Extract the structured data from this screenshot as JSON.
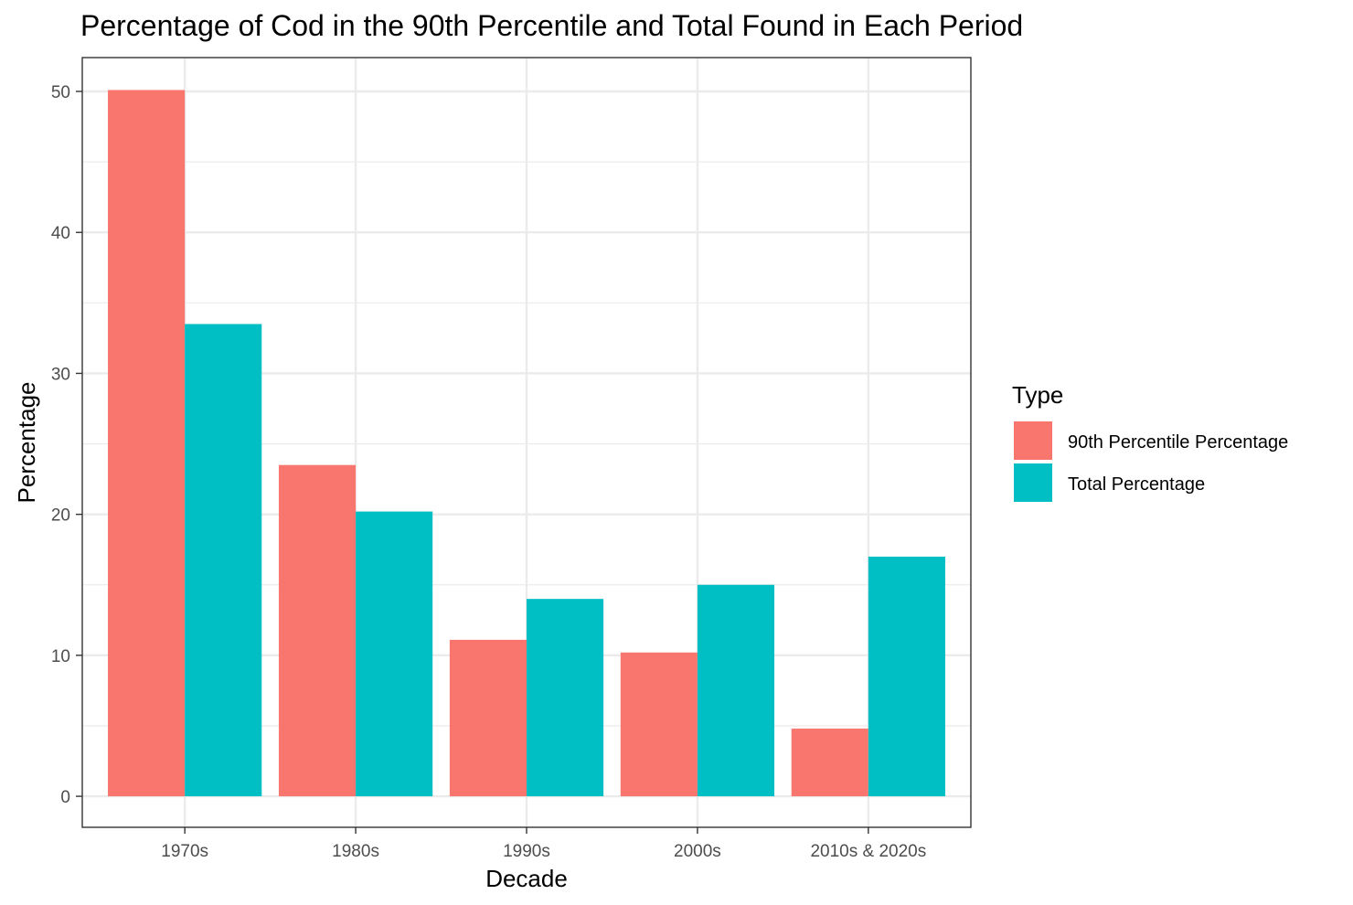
{
  "chart_data": {
    "type": "bar",
    "title": "Percentage of Cod in the 90th Percentile and Total Found in Each Period",
    "xlabel": "Decade",
    "ylabel": "Percentage",
    "categories": [
      "1970s",
      "1980s",
      "1990s",
      "2000s",
      "2010s & 2020s"
    ],
    "series": [
      {
        "name": "90th Percentile Percentage",
        "color": "#F8766D",
        "values": [
          50.1,
          23.5,
          11.1,
          10.2,
          4.8
        ]
      },
      {
        "name": "Total Percentage",
        "color": "#00BFC4",
        "values": [
          33.5,
          20.2,
          14.0,
          15.0,
          17.0
        ]
      }
    ],
    "ylim": [
      -2.2,
      52.4
    ],
    "yticks": [
      0,
      10,
      20,
      30,
      40,
      50
    ],
    "grid": true,
    "legend": {
      "title": "Type",
      "placement": "right"
    }
  }
}
